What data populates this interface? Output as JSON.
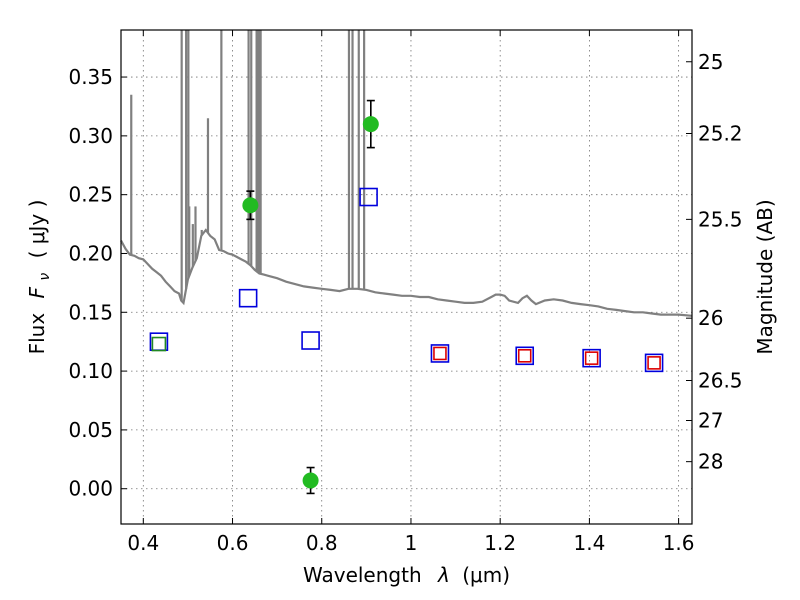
{
  "chart_data": {
    "type": "scatter",
    "title": "",
    "xlabel": "Wavelength",
    "xlabel_symbol": "λ",
    "xlabel_unit": "(μm)",
    "ylabel": "Flux",
    "ylabel_symbol": "F",
    "ylabel_sub": "ν",
    "ylabel_unit": "(  μJy  )",
    "y2label": "Magnitude (AB)",
    "xlim": [
      0.35,
      1.63
    ],
    "ylim": [
      -0.03,
      0.39
    ],
    "grid": true,
    "x_ticks": [
      0.4,
      0.6,
      0.8,
      1.0,
      1.2,
      1.4,
      1.6
    ],
    "x_tick_labels": [
      "0.4",
      "0.6",
      "0.8",
      "1",
      "1.2",
      "1.4",
      "1.6"
    ],
    "y_ticks": [
      0.0,
      0.05,
      0.1,
      0.15,
      0.2,
      0.25,
      0.3,
      0.35
    ],
    "y_tick_labels": [
      "0.00",
      "0.05",
      "0.10",
      "0.15",
      "0.20",
      "0.25",
      "0.30",
      "0.35"
    ],
    "y2_ticks": [
      {
        "flux": 0.363,
        "label": "25"
      },
      {
        "flux": 0.302,
        "label": "25.2"
      },
      {
        "flux": 0.229,
        "label": "25.5"
      },
      {
        "flux": 0.145,
        "label": "26"
      },
      {
        "flux": 0.092,
        "label": "26.5"
      },
      {
        "flux": 0.058,
        "label": "27"
      },
      {
        "flux": 0.023,
        "label": "28"
      }
    ],
    "colors": {
      "model": "#808080",
      "observed": "#22bb22",
      "model_blue": "#0000dd",
      "model_red": "#dd0000",
      "model_green": "#228822",
      "errorbar": "#000000"
    },
    "series": [
      {
        "kind": "line",
        "points": [
          [
            0.35,
            0.211
          ],
          [
            0.36,
            0.204
          ],
          [
            0.37,
            0.199
          ],
          [
            0.38,
            0.198
          ],
          [
            0.39,
            0.196
          ],
          [
            0.4,
            0.195
          ],
          [
            0.41,
            0.191
          ],
          [
            0.42,
            0.187
          ],
          [
            0.43,
            0.184
          ],
          [
            0.44,
            0.181
          ],
          [
            0.45,
            0.176
          ],
          [
            0.46,
            0.172
          ],
          [
            0.47,
            0.168
          ],
          [
            0.48,
            0.166
          ],
          [
            0.485,
            0.16
          ],
          [
            0.49,
            0.158
          ],
          [
            0.495,
            0.168
          ],
          [
            0.5,
            0.178
          ],
          [
            0.51,
            0.188
          ],
          [
            0.52,
            0.196
          ],
          [
            0.53,
            0.215
          ],
          [
            0.54,
            0.22
          ],
          [
            0.55,
            0.215
          ],
          [
            0.56,
            0.212
          ],
          [
            0.57,
            0.203
          ],
          [
            0.58,
            0.202
          ],
          [
            0.59,
            0.2
          ],
          [
            0.6,
            0.199
          ],
          [
            0.61,
            0.197
          ],
          [
            0.62,
            0.195
          ],
          [
            0.63,
            0.193
          ],
          [
            0.64,
            0.19
          ],
          [
            0.65,
            0.186
          ],
          [
            0.66,
            0.183
          ],
          [
            0.67,
            0.182
          ],
          [
            0.68,
            0.181
          ],
          [
            0.7,
            0.179
          ],
          [
            0.72,
            0.176
          ],
          [
            0.74,
            0.174
          ],
          [
            0.76,
            0.172
          ],
          [
            0.78,
            0.171
          ],
          [
            0.8,
            0.17
          ],
          [
            0.82,
            0.169
          ],
          [
            0.84,
            0.168
          ],
          [
            0.86,
            0.17
          ],
          [
            0.88,
            0.17
          ],
          [
            0.9,
            0.169
          ],
          [
            0.92,
            0.167
          ],
          [
            0.94,
            0.166
          ],
          [
            0.96,
            0.165
          ],
          [
            0.98,
            0.164
          ],
          [
            1.0,
            0.164
          ],
          [
            1.02,
            0.163
          ],
          [
            1.04,
            0.163
          ],
          [
            1.06,
            0.161
          ],
          [
            1.08,
            0.16
          ],
          [
            1.1,
            0.159
          ],
          [
            1.12,
            0.158
          ],
          [
            1.14,
            0.158
          ],
          [
            1.16,
            0.159
          ],
          [
            1.18,
            0.163
          ],
          [
            1.19,
            0.165
          ],
          [
            1.2,
            0.165
          ],
          [
            1.21,
            0.164
          ],
          [
            1.22,
            0.16
          ],
          [
            1.24,
            0.158
          ],
          [
            1.25,
            0.162
          ],
          [
            1.26,
            0.164
          ],
          [
            1.27,
            0.16
          ],
          [
            1.28,
            0.157
          ],
          [
            1.3,
            0.16
          ],
          [
            1.32,
            0.161
          ],
          [
            1.34,
            0.16
          ],
          [
            1.36,
            0.158
          ],
          [
            1.38,
            0.157
          ],
          [
            1.4,
            0.156
          ],
          [
            1.42,
            0.155
          ],
          [
            1.44,
            0.153
          ],
          [
            1.46,
            0.152
          ],
          [
            1.48,
            0.151
          ],
          [
            1.5,
            0.15
          ],
          [
            1.52,
            0.15
          ],
          [
            1.54,
            0.149
          ],
          [
            1.56,
            0.148
          ],
          [
            1.58,
            0.148
          ],
          [
            1.6,
            0.148
          ],
          [
            1.63,
            0.147
          ]
        ],
        "emission_lines": [
          [
            0.373,
            0.335
          ],
          [
            0.486,
            0.39
          ],
          [
            0.496,
            0.39
          ],
          [
            0.501,
            0.39
          ],
          [
            0.503,
            0.24
          ],
          [
            0.511,
            0.225
          ],
          [
            0.517,
            0.24
          ],
          [
            0.531,
            0.22
          ],
          [
            0.545,
            0.315
          ],
          [
            0.575,
            0.39
          ],
          [
            0.636,
            0.39
          ],
          [
            0.642,
            0.39
          ],
          [
            0.654,
            0.39
          ],
          [
            0.658,
            0.39
          ],
          [
            0.66,
            0.39
          ],
          [
            0.663,
            0.39
          ],
          [
            0.861,
            0.39
          ],
          [
            0.869,
            0.39
          ],
          [
            0.883,
            0.39
          ],
          [
            0.895,
            0.39
          ]
        ]
      },
      {
        "kind": "observed",
        "points": [
          {
            "x": 0.64,
            "y": 0.241,
            "err": 0.012
          },
          {
            "x": 0.91,
            "y": 0.31,
            "err": 0.02
          },
          {
            "x": 0.775,
            "y": 0.007,
            "err": 0.011
          }
        ]
      },
      {
        "kind": "model_blue",
        "points": [
          {
            "x": 0.435,
            "y": 0.125
          },
          {
            "x": 0.635,
            "y": 0.162
          },
          {
            "x": 0.775,
            "y": 0.126
          },
          {
            "x": 0.905,
            "y": 0.248
          },
          {
            "x": 1.065,
            "y": 0.115
          },
          {
            "x": 1.255,
            "y": 0.113
          },
          {
            "x": 1.405,
            "y": 0.111
          },
          {
            "x": 1.545,
            "y": 0.107
          }
        ]
      },
      {
        "kind": "model_red",
        "points": [
          {
            "x": 1.065,
            "y": 0.115
          },
          {
            "x": 1.255,
            "y": 0.113
          },
          {
            "x": 1.405,
            "y": 0.111
          },
          {
            "x": 1.545,
            "y": 0.107
          }
        ]
      },
      {
        "kind": "model_green",
        "points": [
          {
            "x": 0.435,
            "y": 0.123
          }
        ]
      }
    ]
  }
}
